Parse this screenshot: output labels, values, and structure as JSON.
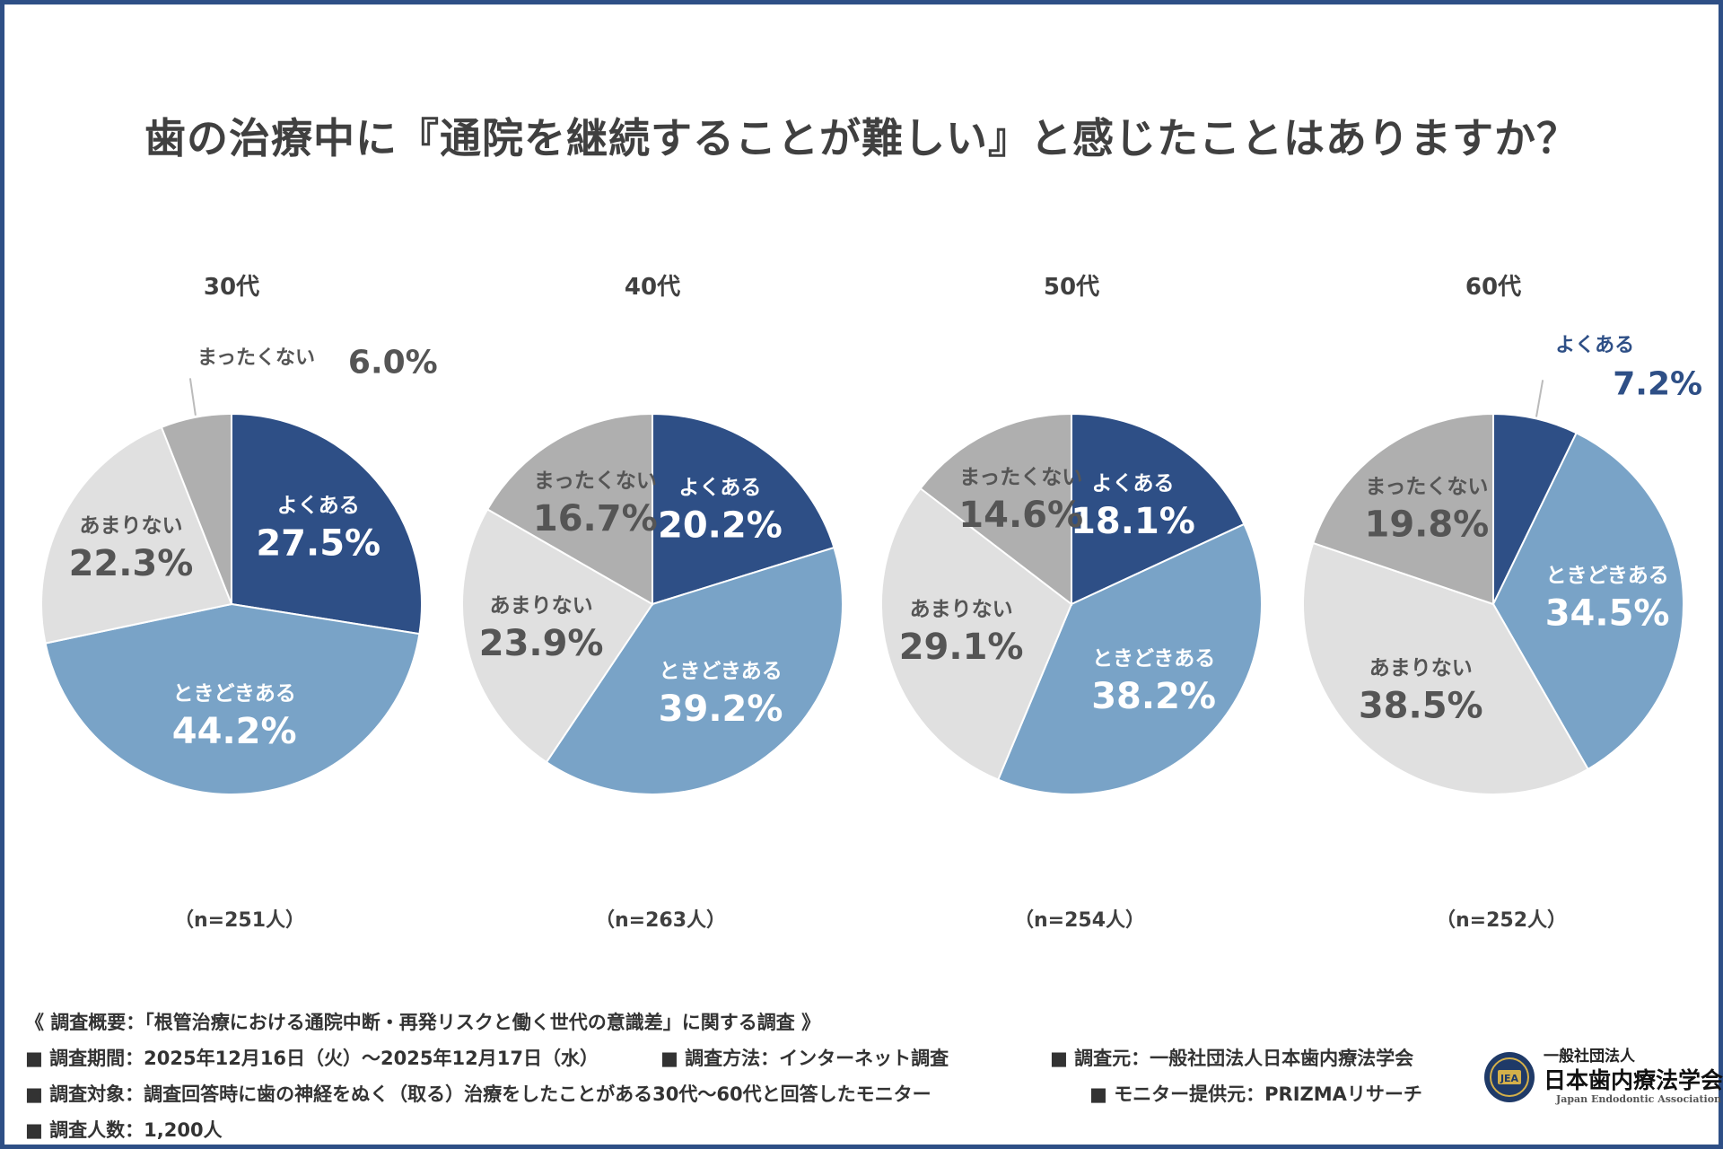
{
  "title": "歯の治療中に『通院を継続することが難しい』と感じたことはありますか？",
  "colors": {
    "frame": "#2e4f86",
    "よくある": "#2e4f86",
    "ときどきある": "#79a3c7",
    "あまりない": "#e0e0e0",
    "まったくない": "#afafaf"
  },
  "chart_data": [
    {
      "type": "pie",
      "title": "30代",
      "n_label": "（n=251人）",
      "slices": [
        {
          "label": "よくある",
          "value": 27.5
        },
        {
          "label": "ときどきある",
          "value": 44.2
        },
        {
          "label": "あまりない",
          "value": 22.3
        },
        {
          "label": "まったくない",
          "value": 6.0
        }
      ]
    },
    {
      "type": "pie",
      "title": "40代",
      "n_label": "（n=263人）",
      "slices": [
        {
          "label": "よくある",
          "value": 20.2
        },
        {
          "label": "ときどきある",
          "value": 39.2
        },
        {
          "label": "あまりない",
          "value": 23.9
        },
        {
          "label": "まったくない",
          "value": 16.7
        }
      ]
    },
    {
      "type": "pie",
      "title": "50代",
      "n_label": "（n=254人）",
      "slices": [
        {
          "label": "よくある",
          "value": 18.1
        },
        {
          "label": "ときどきある",
          "value": 38.2
        },
        {
          "label": "あまりない",
          "value": 29.1
        },
        {
          "label": "まったくない",
          "value": 14.6
        }
      ]
    },
    {
      "type": "pie",
      "title": "60代",
      "n_label": "（n=252人）",
      "slices": [
        {
          "label": "よくある",
          "value": 7.2
        },
        {
          "label": "ときどきある",
          "value": 34.5
        },
        {
          "label": "あまりない",
          "value": 38.5
        },
        {
          "label": "まったくない",
          "value": 19.8
        }
      ]
    }
  ],
  "footer": {
    "overview": "《 調査概要：「根管治療における通院中断・再発リスクと働く世代の意識差」に関する調査 》",
    "period": "■ 調査期間：2025年12月16日（火）～2025年12月17日（水）",
    "method": "■ 調査方法：インターネット調査",
    "source": "■ 調査元：一般社団法人日本歯内療法学会",
    "target": "■ 調査対象：調査回答時に歯の神経をぬく（取る）治療をしたことがある30代～60代と回答したモニター",
    "provider": "■ モニター提供元：PRIZMAリサーチ",
    "count": "■ 調査人数：1,200人"
  },
  "logo": {
    "line1": "一般社団法人",
    "line2": "日本歯内療法学会",
    "line3": "Japan Endodontic Association",
    "emblem": "JEA"
  }
}
